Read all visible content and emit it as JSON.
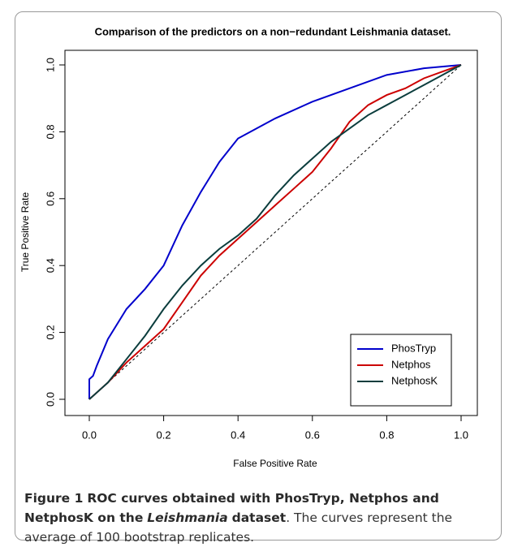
{
  "chart_data": {
    "type": "line",
    "title": "Comparison of the predictors on a non−redundant Leishmania dataset.",
    "x_label": "False Positive Rate",
    "y_label": "True Positive Rate",
    "xlim": [
      0,
      1
    ],
    "ylim": [
      0,
      1
    ],
    "xticks": [
      {
        "value": 0,
        "label": "0.0"
      },
      {
        "value": 0.2,
        "label": "0.2"
      },
      {
        "value": 0.4,
        "label": "0.4"
      },
      {
        "value": 0.6,
        "label": "0.6"
      },
      {
        "value": 0.8,
        "label": "0.8"
      },
      {
        "value": 1,
        "label": "1.0"
      }
    ],
    "yticks": [
      {
        "value": 0,
        "label": "0.0"
      },
      {
        "value": 0.2,
        "label": "0.2"
      },
      {
        "value": 0.4,
        "label": "0.4"
      },
      {
        "value": 0.6,
        "label": "0.6"
      },
      {
        "value": 0.8,
        "label": "0.8"
      },
      {
        "value": 1,
        "label": "1.0"
      }
    ],
    "legend": "bottom-right",
    "series": [
      {
        "name": "PhosTryp",
        "color": "#0000cc",
        "x": [
          0,
          0,
          0.01,
          0.02,
          0.05,
          0.1,
          0.15,
          0.2,
          0.25,
          0.3,
          0.35,
          0.4,
          0.45,
          0.5,
          0.6,
          0.7,
          0.8,
          0.9,
          1.0
        ],
        "values": [
          0,
          0.06,
          0.07,
          0.1,
          0.18,
          0.27,
          0.33,
          0.4,
          0.52,
          0.62,
          0.71,
          0.78,
          0.81,
          0.84,
          0.89,
          0.93,
          0.97,
          0.99,
          1.0
        ]
      },
      {
        "name": "Netphos",
        "color": "#cc0000",
        "x": [
          0,
          0.05,
          0.1,
          0.15,
          0.2,
          0.25,
          0.3,
          0.35,
          0.4,
          0.45,
          0.5,
          0.55,
          0.6,
          0.65,
          0.7,
          0.75,
          0.8,
          0.85,
          0.9,
          0.95,
          1.0
        ],
        "values": [
          0,
          0.05,
          0.11,
          0.16,
          0.21,
          0.29,
          0.37,
          0.43,
          0.48,
          0.53,
          0.58,
          0.63,
          0.68,
          0.75,
          0.83,
          0.88,
          0.91,
          0.93,
          0.96,
          0.98,
          1.0
        ]
      },
      {
        "name": "NetphosK",
        "color": "#0b3d3d",
        "x": [
          0,
          0.05,
          0.1,
          0.15,
          0.2,
          0.25,
          0.3,
          0.35,
          0.4,
          0.45,
          0.5,
          0.55,
          0.6,
          0.65,
          0.7,
          0.75,
          0.8,
          0.85,
          0.9,
          0.95,
          1.0
        ],
        "values": [
          0,
          0.05,
          0.12,
          0.19,
          0.27,
          0.34,
          0.4,
          0.45,
          0.49,
          0.54,
          0.61,
          0.67,
          0.72,
          0.77,
          0.81,
          0.85,
          0.88,
          0.91,
          0.94,
          0.97,
          1.0
        ]
      }
    ]
  },
  "caption": {
    "label": "Figure 1",
    "bold_1": "ROC curves obtained with PhosTryp, Netphos and NetphosK on the",
    "italic": "Leishmania",
    "bold_2": "dataset",
    "text": ". The curves represent the average of 100 bootstrap replicates."
  }
}
